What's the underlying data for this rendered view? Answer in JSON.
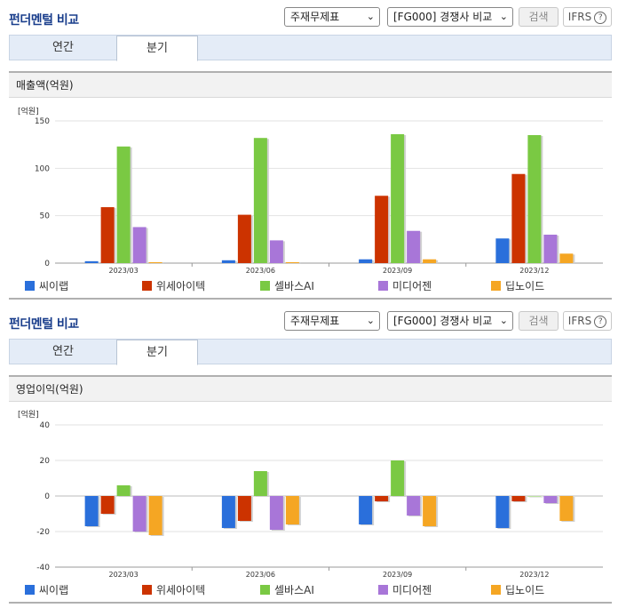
{
  "panels": [
    {
      "title": "펀더멘털 비교",
      "select1": "주재무제표",
      "select2": "[FG000] 경쟁사 비교",
      "search_label": "검색",
      "ifrs_label": "IFRS",
      "tabs": [
        {
          "label": "연간"
        },
        {
          "label": "분기"
        }
      ],
      "active_tab": "분기",
      "metric_label": "매출액(억원)",
      "unit_label": "[억원]"
    },
    {
      "title": "펀더멘털 비교",
      "select1": "주재무제표",
      "select2": "[FG000] 경쟁사 비교",
      "search_label": "검색",
      "ifrs_label": "IFRS",
      "tabs": [
        {
          "label": "연간"
        },
        {
          "label": "분기"
        }
      ],
      "active_tab": "분기",
      "metric_label": "영업이익(억원)",
      "unit_label": "[억원]"
    }
  ],
  "chart_data": [
    {
      "type": "bar",
      "title": "매출액(억원)",
      "ylabel": "[억원]",
      "categories": [
        "2023/03",
        "2023/06",
        "2023/09",
        "2023/12"
      ],
      "ylim": [
        0,
        150
      ],
      "yticks": [
        0,
        50,
        100,
        150
      ],
      "grid": true,
      "legend": "bottom",
      "series": [
        {
          "name": "씨이랩",
          "color": "#2a6fdb",
          "values": [
            2,
            3,
            4,
            26
          ]
        },
        {
          "name": "위세아이텍",
          "color": "#cc3300",
          "values": [
            59,
            51,
            71,
            94
          ]
        },
        {
          "name": "셀바스AI",
          "color": "#7ac943",
          "values": [
            123,
            132,
            136,
            135
          ]
        },
        {
          "name": "미디어젠",
          "color": "#a876d8",
          "values": [
            38,
            24,
            34,
            30
          ]
        },
        {
          "name": "딥노이드",
          "color": "#f5a623",
          "values": [
            1,
            1,
            4,
            10
          ]
        }
      ]
    },
    {
      "type": "bar",
      "title": "영업이익(억원)",
      "ylabel": "[억원]",
      "categories": [
        "2023/03",
        "2023/06",
        "2023/09",
        "2023/12"
      ],
      "ylim": [
        -40,
        40
      ],
      "yticks": [
        -40,
        -20,
        0,
        20,
        40
      ],
      "grid": true,
      "legend": "bottom",
      "series": [
        {
          "name": "씨이랩",
          "color": "#2a6fdb",
          "values": [
            -17,
            -18,
            -16,
            -18
          ]
        },
        {
          "name": "위세아이텍",
          "color": "#cc3300",
          "values": [
            -10,
            -14,
            -3,
            -3
          ]
        },
        {
          "name": "셀바스AI",
          "color": "#7ac943",
          "values": [
            6,
            14,
            20,
            0
          ]
        },
        {
          "name": "미디어젠",
          "color": "#a876d8",
          "values": [
            -20,
            -19,
            -11,
            -4
          ]
        },
        {
          "name": "딥노이드",
          "color": "#f5a623",
          "values": [
            -22,
            -16,
            -17,
            -14
          ]
        }
      ]
    }
  ]
}
